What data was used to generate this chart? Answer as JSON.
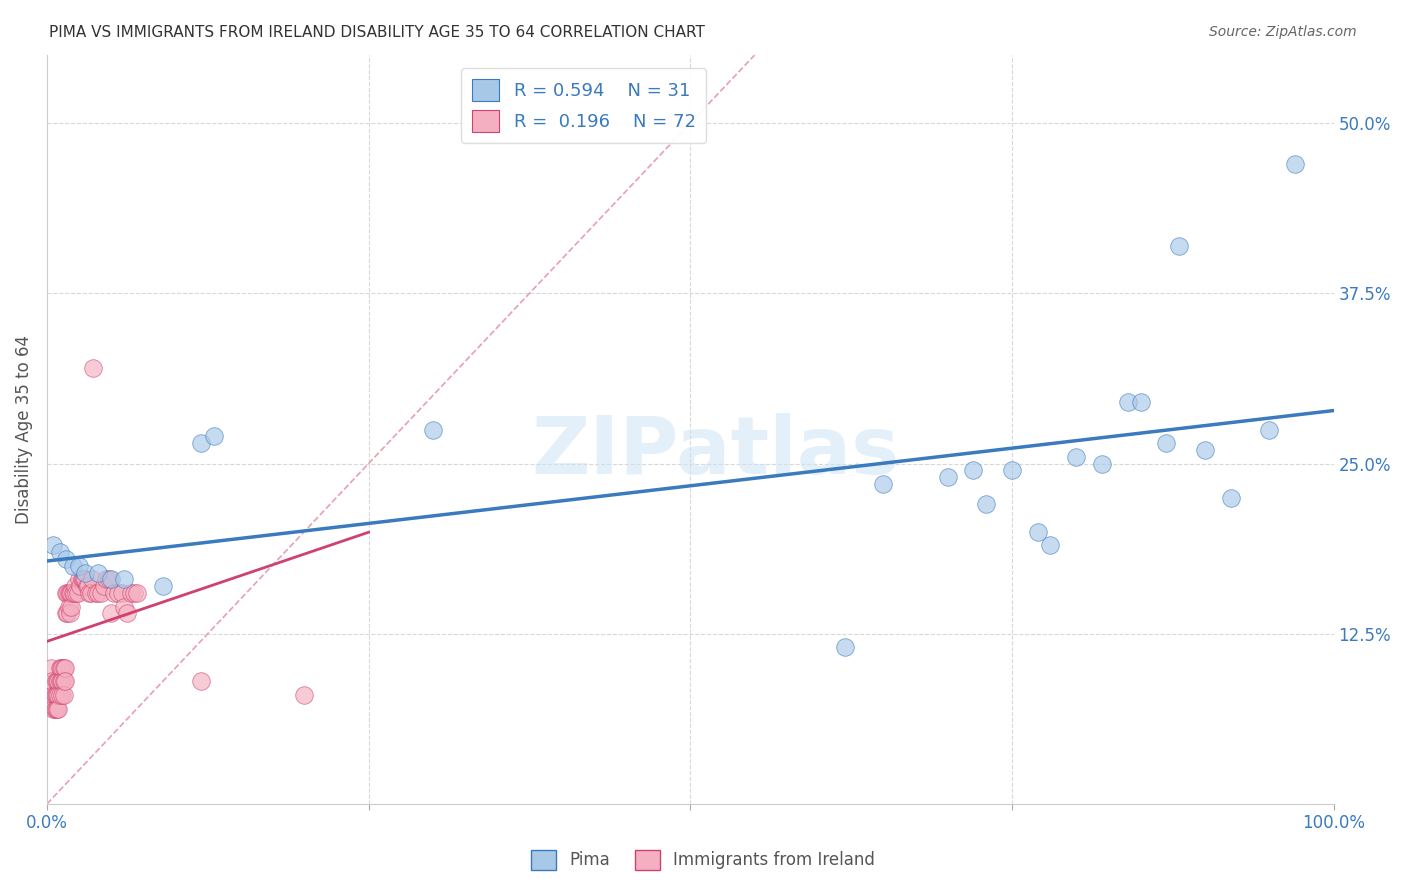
{
  "title": "PIMA VS IMMIGRANTS FROM IRELAND DISABILITY AGE 35 TO 64 CORRELATION CHART",
  "source": "Source: ZipAtlas.com",
  "ylabel": "Disability Age 35 to 64",
  "xlim": [
    0.0,
    1.0
  ],
  "ylim": [
    0.0,
    0.55
  ],
  "xticks": [
    0.0,
    0.25,
    0.5,
    0.75,
    1.0
  ],
  "xtick_labels": [
    "0.0%",
    "",
    "",
    "",
    "100.0%"
  ],
  "yticks": [
    0.0,
    0.125,
    0.25,
    0.375,
    0.5
  ],
  "ytick_labels": [
    "",
    "12.5%",
    "25.0%",
    "37.5%",
    "50.0%"
  ],
  "background_color": "#ffffff",
  "grid_color": "#d8d8d8",
  "watermark": "ZIPatlas",
  "legend_R1": "0.594",
  "legend_N1": "31",
  "legend_R2": "0.196",
  "legend_N2": "72",
  "blue_color": "#a8c8e8",
  "pink_color": "#f4b0c0",
  "blue_line_color": "#3a7abf",
  "pink_line_color": "#d04070",
  "diagonal_color": "#e8a0b0",
  "pima_x": [
    0.005,
    0.01,
    0.015,
    0.02,
    0.025,
    0.03,
    0.04,
    0.05,
    0.06,
    0.09,
    0.12,
    0.13,
    0.3,
    0.62,
    0.65,
    0.7,
    0.72,
    0.73,
    0.75,
    0.77,
    0.78,
    0.8,
    0.82,
    0.84,
    0.85,
    0.87,
    0.88,
    0.9,
    0.92,
    0.95,
    0.97
  ],
  "pima_y": [
    0.19,
    0.185,
    0.18,
    0.175,
    0.175,
    0.17,
    0.17,
    0.165,
    0.165,
    0.16,
    0.265,
    0.27,
    0.275,
    0.115,
    0.235,
    0.24,
    0.245,
    0.22,
    0.245,
    0.2,
    0.19,
    0.255,
    0.25,
    0.295,
    0.295,
    0.265,
    0.41,
    0.26,
    0.225,
    0.275,
    0.47
  ],
  "ireland_x": [
    0.003,
    0.004,
    0.005,
    0.005,
    0.006,
    0.006,
    0.007,
    0.007,
    0.007,
    0.008,
    0.008,
    0.008,
    0.009,
    0.009,
    0.009,
    0.01,
    0.01,
    0.01,
    0.011,
    0.011,
    0.012,
    0.012,
    0.012,
    0.013,
    0.013,
    0.013,
    0.014,
    0.014,
    0.015,
    0.015,
    0.016,
    0.016,
    0.017,
    0.017,
    0.018,
    0.018,
    0.019,
    0.019,
    0.02,
    0.021,
    0.022,
    0.023,
    0.024,
    0.025,
    0.026,
    0.027,
    0.028,
    0.029,
    0.03,
    0.031,
    0.032,
    0.033,
    0.034,
    0.035,
    0.036,
    0.038,
    0.04,
    0.042,
    0.044,
    0.046,
    0.048,
    0.05,
    0.052,
    0.055,
    0.058,
    0.06,
    0.062,
    0.065,
    0.068,
    0.07,
    0.12,
    0.2
  ],
  "ireland_y": [
    0.1,
    0.09,
    0.08,
    0.07,
    0.08,
    0.07,
    0.09,
    0.08,
    0.07,
    0.09,
    0.08,
    0.07,
    0.09,
    0.08,
    0.07,
    0.1,
    0.09,
    0.08,
    0.1,
    0.09,
    0.1,
    0.09,
    0.08,
    0.1,
    0.09,
    0.08,
    0.1,
    0.09,
    0.155,
    0.14,
    0.155,
    0.14,
    0.155,
    0.145,
    0.155,
    0.14,
    0.155,
    0.145,
    0.155,
    0.155,
    0.16,
    0.155,
    0.155,
    0.165,
    0.16,
    0.165,
    0.165,
    0.165,
    0.165,
    0.16,
    0.16,
    0.155,
    0.155,
    0.165,
    0.32,
    0.155,
    0.155,
    0.155,
    0.16,
    0.165,
    0.165,
    0.14,
    0.155,
    0.155,
    0.155,
    0.145,
    0.14,
    0.155,
    0.155,
    0.155,
    0.09,
    0.08
  ]
}
